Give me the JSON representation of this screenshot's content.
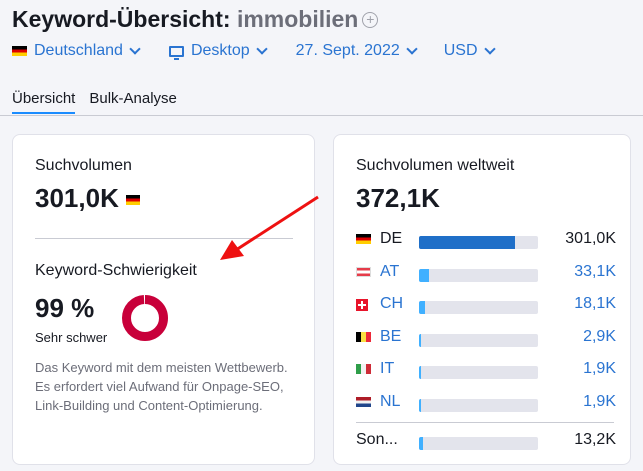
{
  "header": {
    "title": "Keyword-Übersicht:",
    "keyword": "immobilien",
    "add_icon": "plus-circle-icon"
  },
  "filters": [
    {
      "label": "Deutschland",
      "icon": "flag-de"
    },
    {
      "label": "Desktop",
      "icon": "monitor-icon"
    },
    {
      "label": "27. Sept. 2022"
    },
    {
      "label": "USD"
    }
  ],
  "tabs": [
    {
      "label": "Übersicht",
      "active": true
    },
    {
      "label": "Bulk-Analyse",
      "active": false
    }
  ],
  "volume": {
    "label": "Suchvolumen",
    "value": "301,0K"
  },
  "difficulty": {
    "label": "Keyword-Schwierigkeit",
    "value": "99 %",
    "percent": 99,
    "level": "Sehr schwer",
    "color": "#c8003a",
    "description": "Das Keyword mit dem meisten Wettbewerb. Es erfordert viel Aufwand für Onpage-SEO, Link-Building und Content-Optimierung."
  },
  "global": {
    "label": "Suchvolumen weltweit",
    "value": "372,1K",
    "rows": [
      {
        "code": "DE",
        "flag": "de",
        "value": "301,0K",
        "share": 81,
        "color": "#1f6fc8"
      },
      {
        "code": "AT",
        "flag": "at",
        "value": "33,1K",
        "share": 8.5,
        "color": "#40b0ff"
      },
      {
        "code": "CH",
        "flag": "ch",
        "value": "18,1K",
        "share": 5,
        "color": "#40b0ff"
      },
      {
        "code": "BE",
        "flag": "be",
        "value": "2,9K",
        "share": 2,
        "color": "#40b0ff"
      },
      {
        "code": "IT",
        "flag": "it",
        "value": "1,9K",
        "share": 2,
        "color": "#40b0ff"
      },
      {
        "code": "NL",
        "flag": "nl",
        "value": "1,9K",
        "share": 2,
        "color": "#40b0ff"
      }
    ],
    "other": {
      "label": "Son...",
      "value": "13,2K",
      "share": 3
    }
  },
  "annotation": {
    "arrow_color": "#ee1111"
  }
}
